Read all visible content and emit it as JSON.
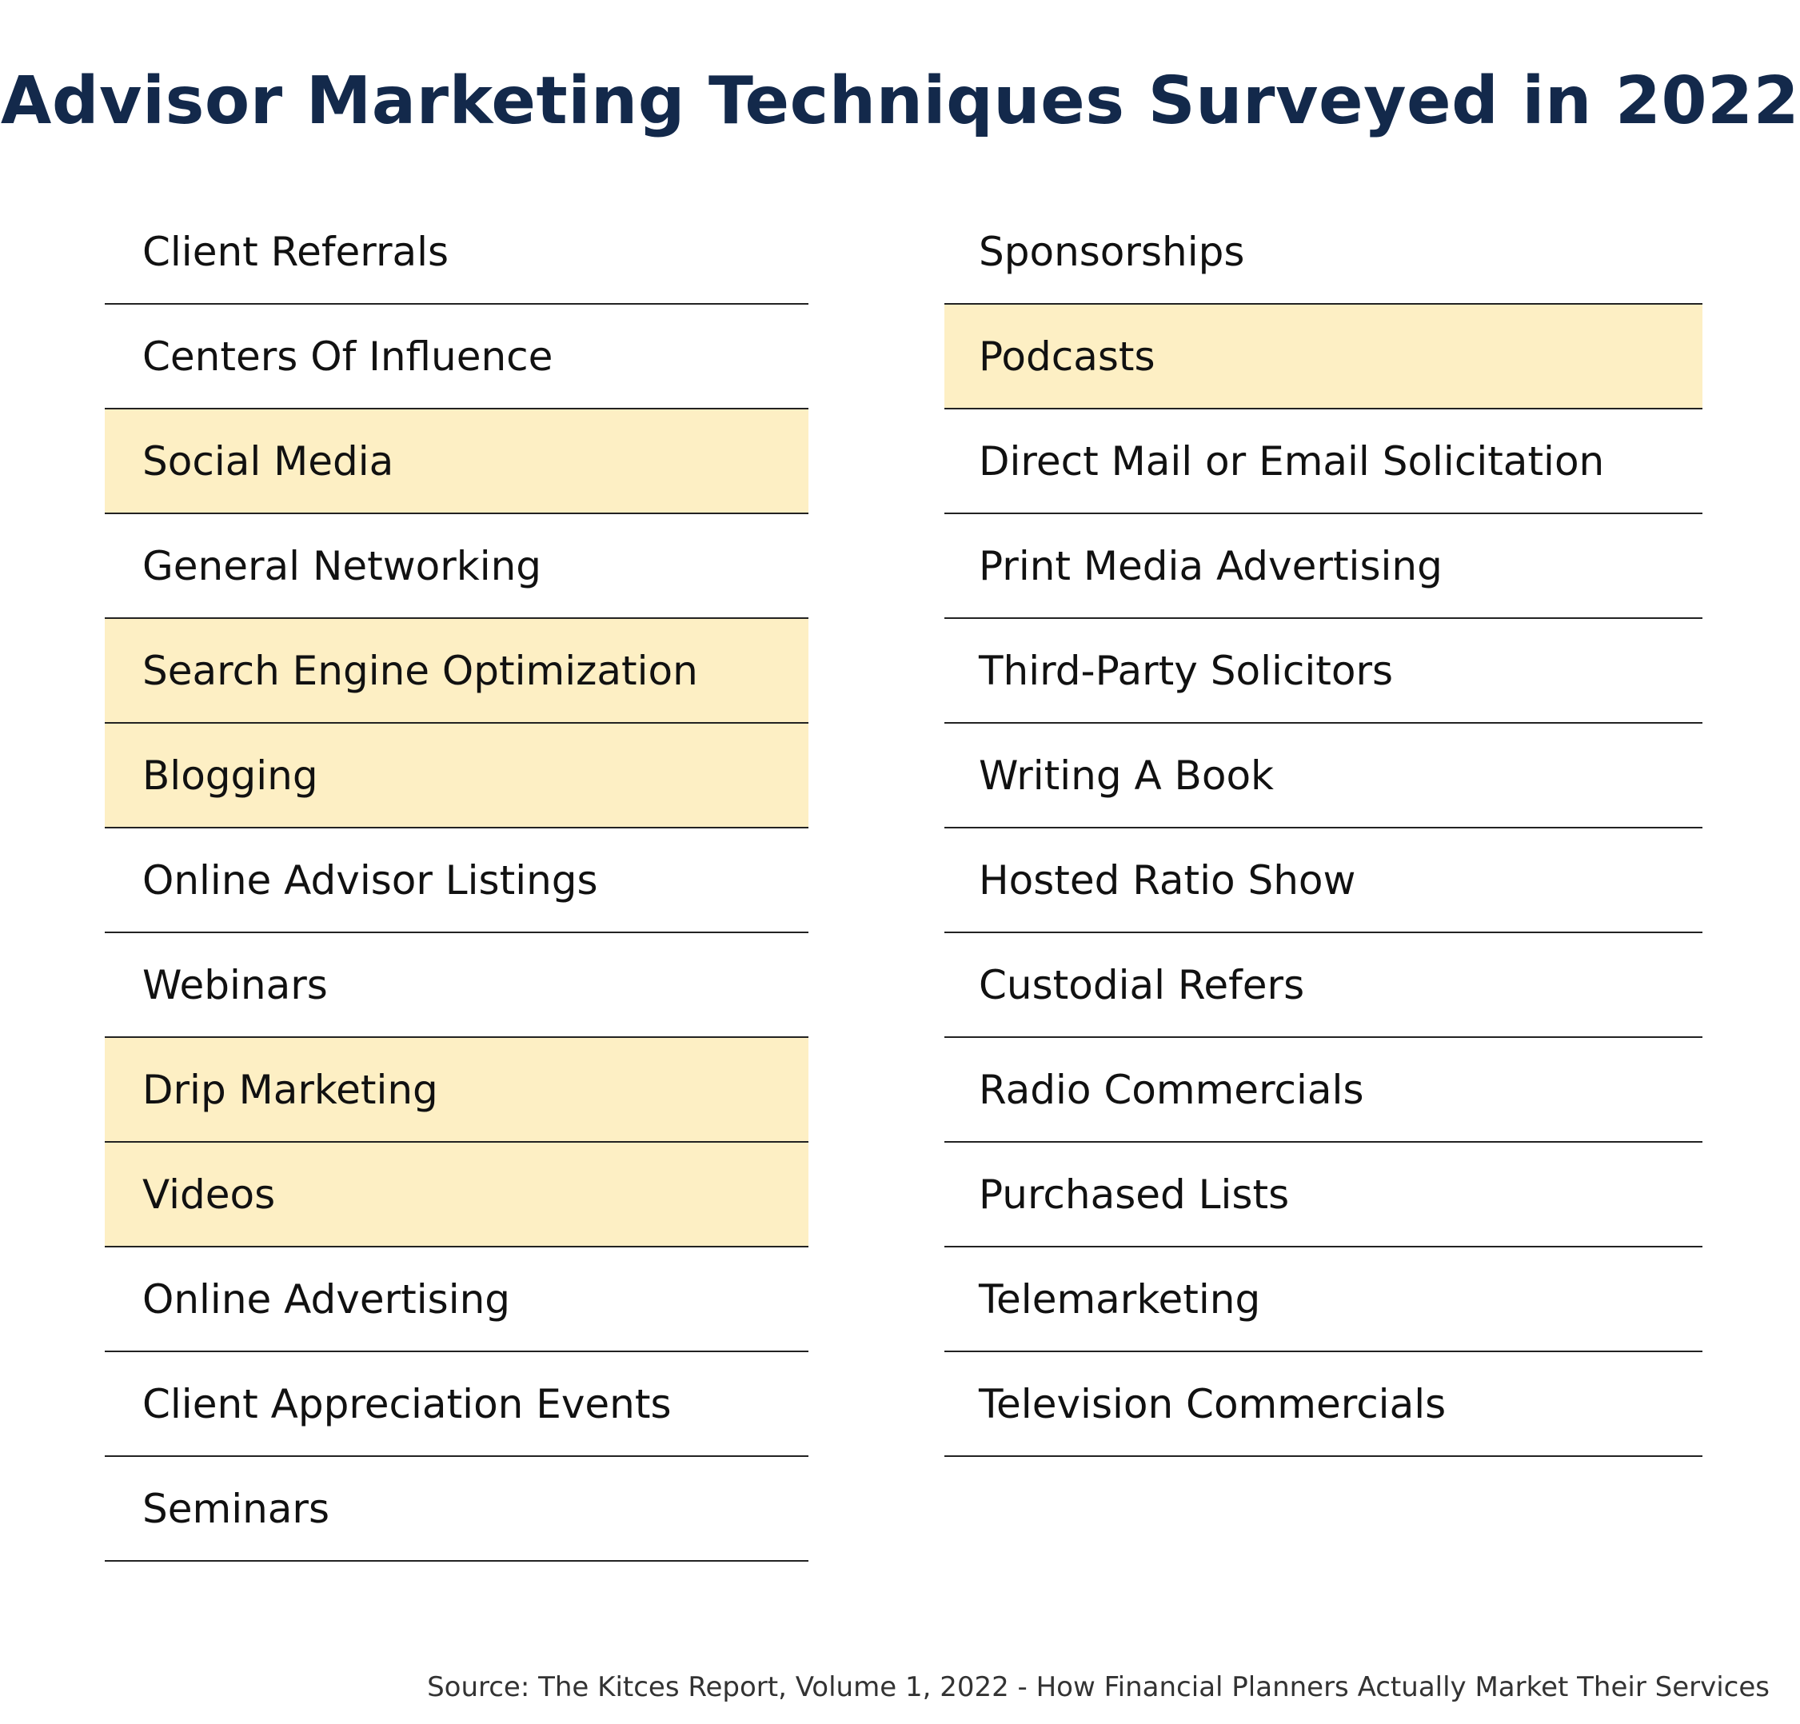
{
  "title": "Advisor Marketing Techniques Surveyed in 2022",
  "highlight_color": "#fdefc4",
  "title_color": "#13294b",
  "left_column": [
    {
      "label": "Client Referrals",
      "highlighted": false
    },
    {
      "label": "Centers Of Influence",
      "highlighted": false
    },
    {
      "label": "Social Media",
      "highlighted": true
    },
    {
      "label": "General Networking",
      "highlighted": false
    },
    {
      "label": "Search Engine Optimization",
      "highlighted": true
    },
    {
      "label": "Blogging",
      "highlighted": true
    },
    {
      "label": "Online Advisor Listings",
      "highlighted": false
    },
    {
      "label": "Webinars",
      "highlighted": false
    },
    {
      "label": "Drip Marketing",
      "highlighted": true
    },
    {
      "label": "Videos",
      "highlighted": true
    },
    {
      "label": "Online Advertising",
      "highlighted": false
    },
    {
      "label": "Client Appreciation Events",
      "highlighted": false
    },
    {
      "label": "Seminars",
      "highlighted": false
    }
  ],
  "right_column": [
    {
      "label": "Sponsorships",
      "highlighted": false
    },
    {
      "label": "Podcasts",
      "highlighted": true
    },
    {
      "label": "Direct Mail or Email Solicitation",
      "highlighted": false
    },
    {
      "label": "Print Media Advertising",
      "highlighted": false
    },
    {
      "label": "Third-Party Solicitors",
      "highlighted": false
    },
    {
      "label": "Writing A Book",
      "highlighted": false
    },
    {
      "label": "Hosted Ratio Show",
      "highlighted": false
    },
    {
      "label": "Custodial Refers",
      "highlighted": false
    },
    {
      "label": "Radio Commercials",
      "highlighted": false
    },
    {
      "label": "Purchased Lists",
      "highlighted": false
    },
    {
      "label": "Telemarketing",
      "highlighted": false
    },
    {
      "label": "Television Commercials",
      "highlighted": false
    }
  ],
  "source": "Source: The Kitces Report, Volume 1, 2022 - How Financial Planners Actually Market Their Services"
}
